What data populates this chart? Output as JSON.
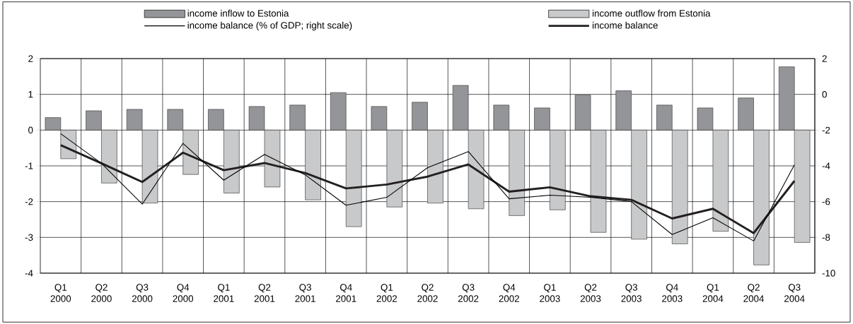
{
  "chart_data": {
    "type": "bar",
    "categories": [
      "Q1 2000",
      "Q2 2000",
      "Q3 2000",
      "Q4 2000",
      "Q1 2001",
      "Q2 2001",
      "Q3 2001",
      "Q4 2001",
      "Q1 2002",
      "Q2 2002",
      "Q3 2002",
      "Q4 2002",
      "Q1 2003",
      "Q2 2003",
      "Q3 2003",
      "Q4 2003",
      "Q1 2004",
      "Q2 2004",
      "Q3 2004"
    ],
    "series": [
      {
        "name": "income inflow to Estonia",
        "color": "#939598",
        "values": [
          0.35,
          0.54,
          0.58,
          0.58,
          0.58,
          0.66,
          0.7,
          1.05,
          0.66,
          0.78,
          1.25,
          0.7,
          0.62,
          0.98,
          1.1,
          0.7,
          0.62,
          0.9,
          1.77
        ]
      },
      {
        "name": "income outflow from Estonia",
        "color": "#c8c9cb",
        "values": [
          -0.8,
          -1.48,
          -2.04,
          -1.24,
          -1.76,
          -1.59,
          -1.95,
          -2.7,
          -2.15,
          -2.04,
          -2.2,
          -2.39,
          -2.23,
          -2.86,
          -3.05,
          -3.18,
          -2.83,
          -3.77,
          -3.14
        ]
      },
      {
        "name": "income balance (% of GDP; right scale)",
        "type": "line",
        "axis": "y2",
        "color": "#000000",
        "values": [
          -2.2,
          -3.86,
          -6.14,
          -2.74,
          -4.8,
          -3.36,
          -4.5,
          -6.2,
          -5.76,
          -4.1,
          -3.2,
          -5.84,
          -5.64,
          -5.76,
          -6.0,
          -7.84,
          -6.9,
          -8.2,
          -3.94
        ]
      },
      {
        "name": "income balance",
        "type": "line",
        "color": "#231f20",
        "values": [
          -0.42,
          -0.93,
          -1.45,
          -0.63,
          -1.12,
          -0.92,
          -1.2,
          -1.63,
          -1.52,
          -1.3,
          -0.96,
          -1.72,
          -1.6,
          -1.85,
          -1.95,
          -2.47,
          -2.2,
          -2.88,
          -1.42
        ]
      }
    ],
    "ylim": [
      -4,
      2
    ],
    "yticks": [
      -4,
      -3,
      -2,
      -1,
      0,
      1,
      2
    ],
    "y2lim": [
      -10,
      2
    ],
    "y2ticks": [
      -10,
      -8,
      -6,
      -4,
      -2,
      0,
      2
    ],
    "grid": true,
    "legend": "top",
    "marker": "none",
    "line_style": "solid"
  }
}
